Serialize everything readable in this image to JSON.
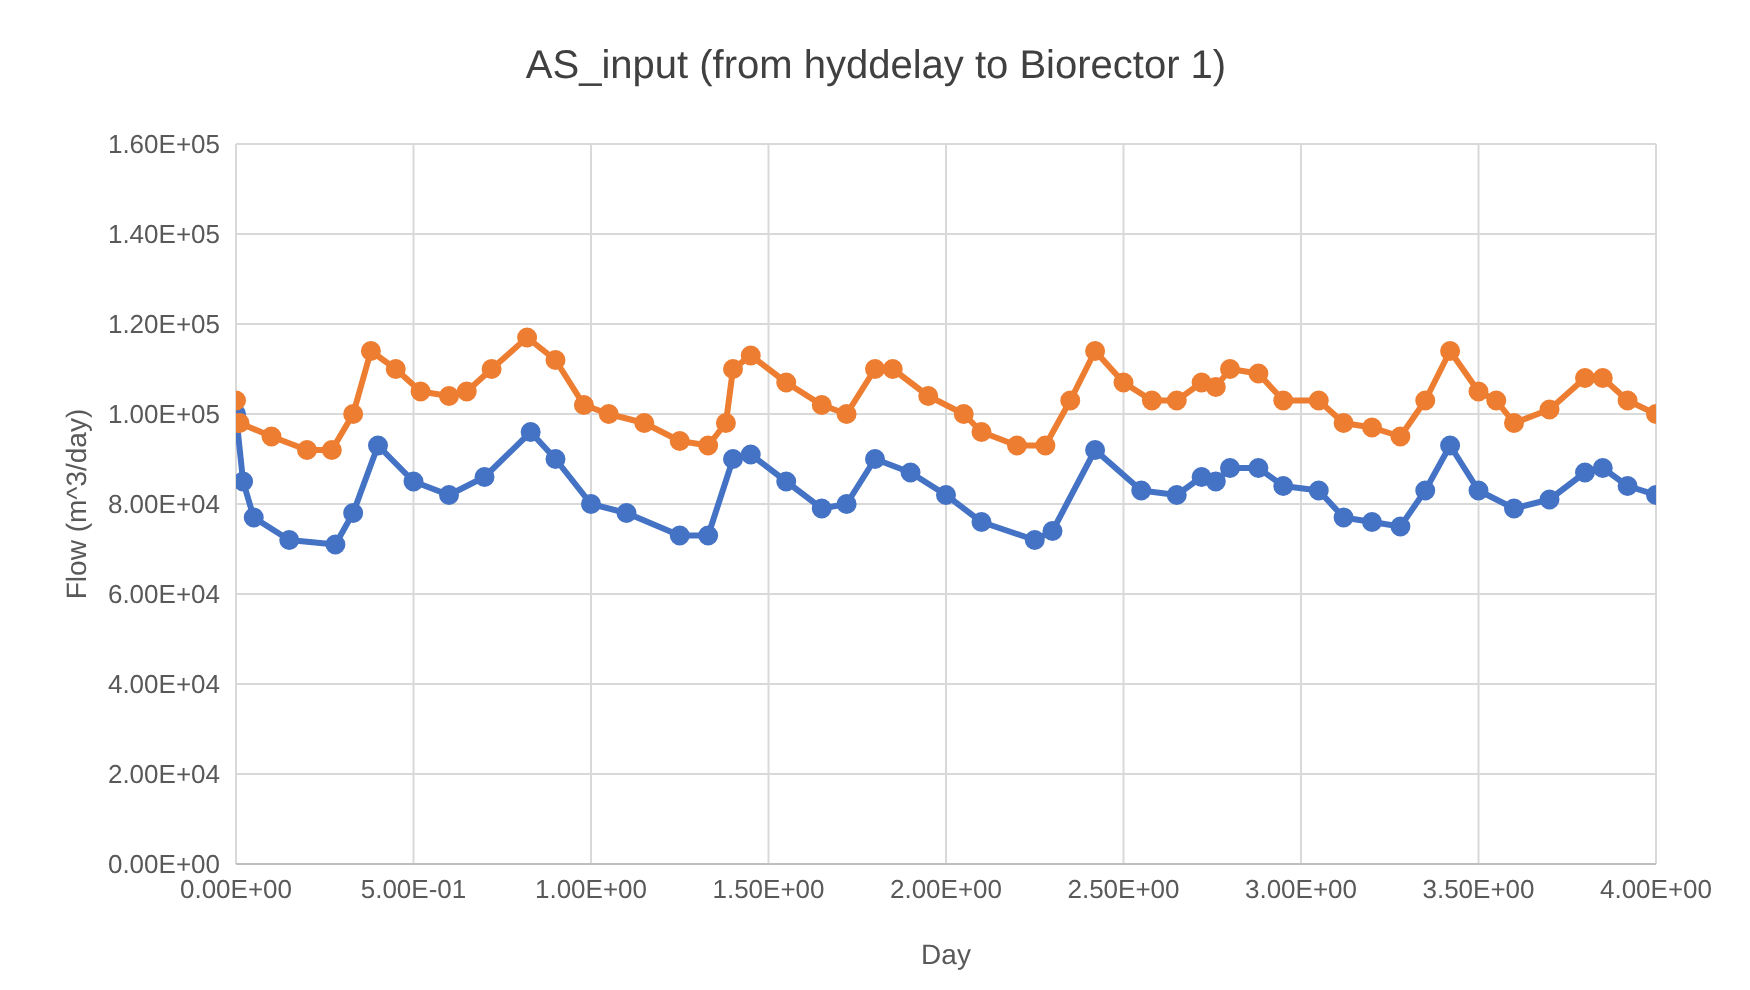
{
  "chart_data": {
    "type": "line",
    "title": "AS_input (from hyddelay to Biorector 1)",
    "xlabel": "Day",
    "ylabel": "Flow (m^3/day)",
    "xlim": [
      0,
      4
    ],
    "ylim": [
      0,
      160000
    ],
    "xticks": [
      {
        "value": 0,
        "label": "0.00E+00"
      },
      {
        "value": 0.5,
        "label": "5.00E-01"
      },
      {
        "value": 1,
        "label": "1.00E+00"
      },
      {
        "value": 1.5,
        "label": "1.50E+00"
      },
      {
        "value": 2,
        "label": "2.00E+00"
      },
      {
        "value": 2.5,
        "label": "2.50E+00"
      },
      {
        "value": 3,
        "label": "3.00E+00"
      },
      {
        "value": 3.5,
        "label": "3.50E+00"
      },
      {
        "value": 4,
        "label": "4.00E+00"
      }
    ],
    "yticks": [
      {
        "value": 0,
        "label": "0.00E+00"
      },
      {
        "value": 20000,
        "label": "2.00E+04"
      },
      {
        "value": 40000,
        "label": "4.00E+04"
      },
      {
        "value": 60000,
        "label": "6.00E+04"
      },
      {
        "value": 80000,
        "label": "8.00E+04"
      },
      {
        "value": 100000,
        "label": "1.00E+05"
      },
      {
        "value": 120000,
        "label": "1.20E+05"
      },
      {
        "value": 140000,
        "label": "1.40E+05"
      },
      {
        "value": 160000,
        "label": "1.60E+05"
      }
    ],
    "grid": true,
    "marker": "circle",
    "line_style": "solid",
    "series": [
      {
        "color": "#4472c4",
        "x": [
          0,
          0.02,
          0.05,
          0.15,
          0.28,
          0.33,
          0.4,
          0.5,
          0.6,
          0.7,
          0.83,
          0.9,
          1.0,
          1.1,
          1.25,
          1.33,
          1.4,
          1.45,
          1.55,
          1.65,
          1.72,
          1.8,
          1.9,
          2.0,
          2.1,
          2.25,
          2.3,
          2.42,
          2.55,
          2.65,
          2.72,
          2.76,
          2.8,
          2.88,
          2.95,
          3.05,
          3.12,
          3.2,
          3.28,
          3.35,
          3.42,
          3.5,
          3.6,
          3.7,
          3.8,
          3.85,
          3.92,
          4.0
        ],
        "values": [
          100000,
          85000,
          77000,
          72000,
          71000,
          78000,
          93000,
          85000,
          82000,
          86000,
          96000,
          90000,
          80000,
          78000,
          73000,
          73000,
          90000,
          91000,
          85000,
          79000,
          80000,
          90000,
          87000,
          82000,
          76000,
          72000,
          74000,
          92000,
          83000,
          82000,
          86000,
          85000,
          88000,
          88000,
          84000,
          83000,
          77000,
          76000,
          75000,
          83000,
          93000,
          83000,
          79000,
          81000,
          87000,
          88000,
          84000,
          82000
        ]
      },
      {
        "color": "#ed7d31",
        "x": [
          0,
          0.01,
          0.1,
          0.2,
          0.27,
          0.33,
          0.38,
          0.45,
          0.52,
          0.6,
          0.65,
          0.72,
          0.82,
          0.9,
          0.98,
          1.05,
          1.15,
          1.25,
          1.33,
          1.38,
          1.4,
          1.45,
          1.55,
          1.65,
          1.72,
          1.8,
          1.85,
          1.95,
          2.05,
          2.1,
          2.2,
          2.28,
          2.35,
          2.42,
          2.5,
          2.58,
          2.65,
          2.72,
          2.76,
          2.8,
          2.88,
          2.95,
          3.05,
          3.12,
          3.2,
          3.28,
          3.35,
          3.42,
          3.5,
          3.55,
          3.6,
          3.7,
          3.8,
          3.85,
          3.92,
          4.0
        ],
        "values": [
          103000,
          98000,
          95000,
          92000,
          92000,
          100000,
          114000,
          110000,
          105000,
          104000,
          105000,
          110000,
          117000,
          112000,
          102000,
          100000,
          98000,
          94000,
          93000,
          98000,
          110000,
          113000,
          107000,
          102000,
          100000,
          110000,
          110000,
          104000,
          100000,
          96000,
          93000,
          93000,
          103000,
          114000,
          107000,
          103000,
          103000,
          107000,
          106000,
          110000,
          109000,
          103000,
          103000,
          98000,
          97000,
          95000,
          103000,
          114000,
          105000,
          103000,
          98000,
          101000,
          108000,
          108000,
          103000,
          100000
        ]
      }
    ]
  }
}
